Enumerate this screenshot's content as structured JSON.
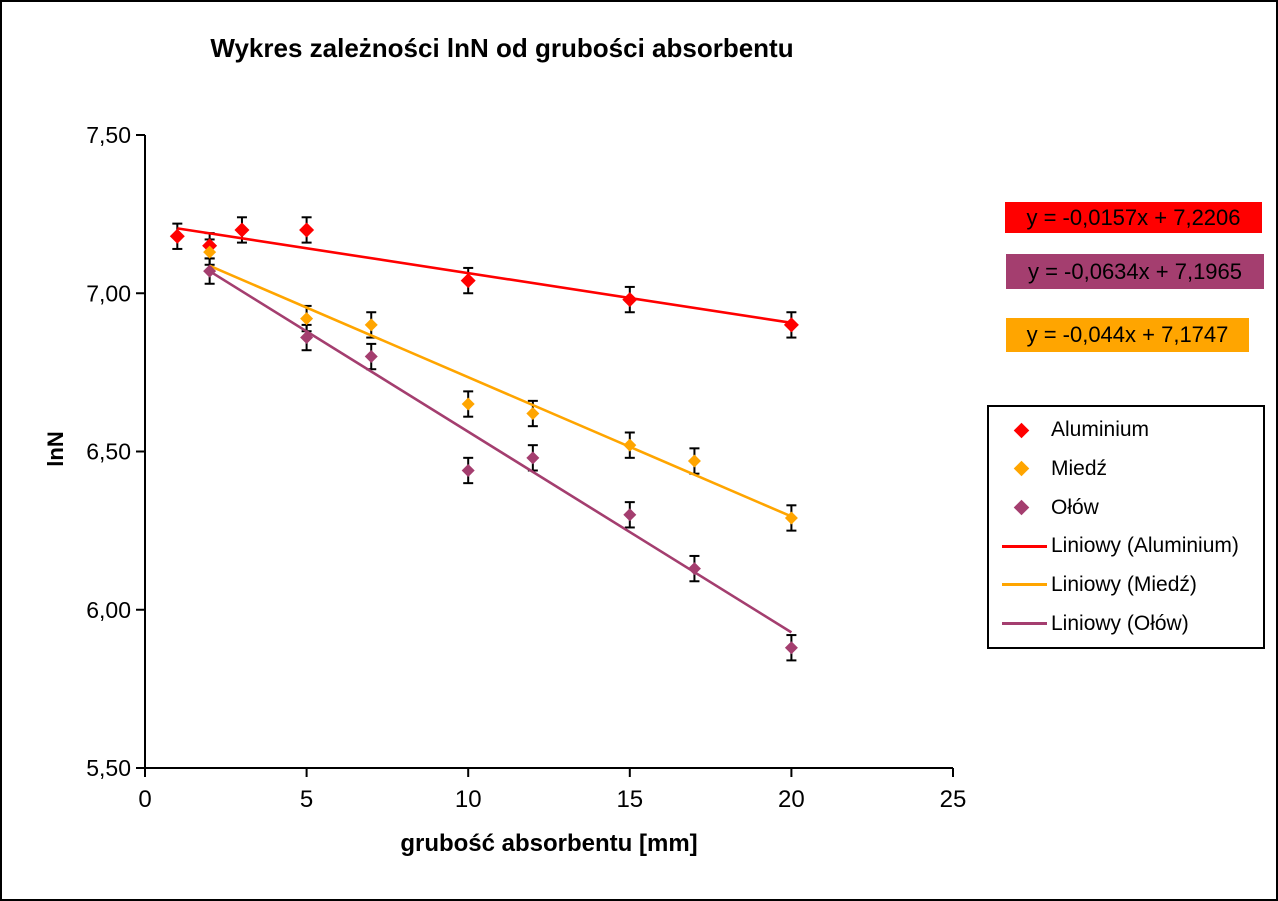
{
  "chart_data": {
    "type": "scatter",
    "title": "Wykres zależności lnN od grubości absorbentu",
    "xlabel": "grubość absorbentu [mm]",
    "ylabel": "lnN",
    "xlim": [
      0,
      25
    ],
    "ylim": [
      5.5,
      7.5
    ],
    "x_ticks": [
      0,
      5,
      10,
      15,
      20,
      25
    ],
    "y_ticks": [
      7.5,
      7.0,
      6.5,
      6.0,
      5.5
    ],
    "y_tick_labels": [
      "7,50",
      "7,00",
      "6,50",
      "6,00",
      "5,50"
    ],
    "x_tick_labels": [
      "0",
      "5",
      "10",
      "15",
      "20",
      "25"
    ],
    "grid": false,
    "legend_position": "right",
    "error_bar_half_value": 0.04,
    "series": [
      {
        "name": "Aluminium",
        "color": "#FF0000",
        "marker": "diamond",
        "x": [
          1,
          2,
          3,
          5,
          10,
          15,
          20
        ],
        "y": [
          7.18,
          7.15,
          7.2,
          7.2,
          7.04,
          6.98,
          6.9
        ],
        "trendline": {
          "slope": -0.0157,
          "intercept": 7.2206,
          "x_start": 1,
          "x_end": 20,
          "equation": "y = -0,0157x + 7,2206"
        }
      },
      {
        "name": "Miedź",
        "color": "#FFA500",
        "marker": "diamond",
        "x": [
          2,
          5,
          7,
          10,
          12,
          15,
          17,
          20
        ],
        "y": [
          7.13,
          6.92,
          6.9,
          6.65,
          6.62,
          6.52,
          6.47,
          6.29
        ],
        "trendline": {
          "slope": -0.044,
          "intercept": 7.1747,
          "x_start": 2,
          "x_end": 20,
          "equation": "y = -0,044x + 7,1747"
        }
      },
      {
        "name": "Ołów",
        "color": "#A43E6F",
        "marker": "diamond",
        "x": [
          2,
          5,
          7,
          10,
          12,
          15,
          17,
          20
        ],
        "y": [
          7.07,
          6.86,
          6.8,
          6.44,
          6.48,
          6.3,
          6.13,
          5.88
        ],
        "trendline": {
          "slope": -0.0634,
          "intercept": 7.1965,
          "x_start": 2,
          "x_end": 20,
          "equation": "y = -0,0634x + 7,1965"
        }
      }
    ],
    "equation_labels": [
      {
        "text": "y = -0,0157x + 7,2206",
        "bg_color": "#FF0000",
        "series": "Aluminium"
      },
      {
        "text": "y = -0,0634x + 7,1965",
        "bg_color": "#A43E6F",
        "series": "Ołów"
      },
      {
        "text": "y = -0,044x + 7,1747",
        "bg_color": "#FFA500",
        "series": "Miedź"
      }
    ],
    "legend_entries": [
      {
        "label": "Aluminium",
        "swatch": "diamond",
        "color": "#FF0000"
      },
      {
        "label": "Miedź",
        "swatch": "diamond",
        "color": "#FFA500"
      },
      {
        "label": "Ołów",
        "swatch": "diamond",
        "color": "#A43E6F"
      },
      {
        "label": "Liniowy (Aluminium)",
        "swatch": "line",
        "color": "#FF0000"
      },
      {
        "label": "Liniowy (Miedź)",
        "swatch": "line",
        "color": "#FFA500"
      },
      {
        "label": "Liniowy (Ołów)",
        "swatch": "line",
        "color": "#A43E6F"
      }
    ],
    "colors": {
      "axis": "#000000",
      "error_bar": "#000000",
      "background": "#FFFFFF",
      "border": "#000000"
    }
  }
}
